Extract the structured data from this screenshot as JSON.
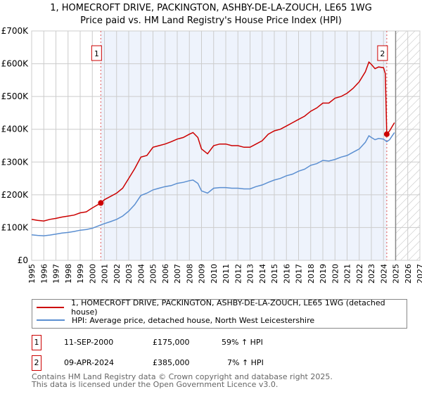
{
  "title_line1": "1, HOMECROFT DRIVE, PACKINGTON, ASHBY-DE-LA-ZOUCH, LE65 1WG",
  "title_line2": "Price paid vs. HM Land Registry's House Price Index (HPI)",
  "chart_data": {
    "type": "line",
    "xlim": [
      1995,
      2027
    ],
    "ylim": [
      0,
      700000
    ],
    "yticks": [
      {
        "v": 0,
        "label": "£0"
      },
      {
        "v": 100000,
        "label": "£100K"
      },
      {
        "v": 200000,
        "label": "£200K"
      },
      {
        "v": 300000,
        "label": "£300K"
      },
      {
        "v": 400000,
        "label": "£400K"
      },
      {
        "v": 500000,
        "label": "£500K"
      },
      {
        "v": 600000,
        "label": "£600K"
      },
      {
        "v": 700000,
        "label": "£700K"
      }
    ],
    "xticks": [
      "1995",
      "1996",
      "1997",
      "1998",
      "1999",
      "2000",
      "2001",
      "2002",
      "2003",
      "2004",
      "2005",
      "2006",
      "2007",
      "2008",
      "2009",
      "2010",
      "2011",
      "2012",
      "2013",
      "2014",
      "2015",
      "2016",
      "2017",
      "2018",
      "2019",
      "2020",
      "2021",
      "2022",
      "2023",
      "2024",
      "2025",
      "2026",
      "2027"
    ],
    "highlight_range": [
      2000.7,
      2024.27
    ],
    "forecast_start": 2025,
    "series": [
      {
        "name": "1, HOMECROFT DRIVE, PACKINGTON, ASHBY-DE-LA-ZOUCH, LE65 1WG (detached house)",
        "color": "#cc0000",
        "x": [
          1995,
          1995.5,
          1996,
          1996.5,
          1997,
          1997.5,
          1998,
          1998.5,
          1999,
          1999.5,
          2000,
          2000.7,
          2001,
          2001.5,
          2002,
          2002.5,
          2003,
          2003.5,
          2004,
          2004.5,
          2005,
          2005.5,
          2006,
          2006.5,
          2007,
          2007.5,
          2008,
          2008.3,
          2008.7,
          2009,
          2009.5,
          2010,
          2010.5,
          2011,
          2011.5,
          2012,
          2012.5,
          2013,
          2013.5,
          2014,
          2014.5,
          2015,
          2015.5,
          2016,
          2016.5,
          2017,
          2017.5,
          2018,
          2018.5,
          2019,
          2019.5,
          2020,
          2020.5,
          2021,
          2021.5,
          2022,
          2022.5,
          2022.8,
          2023,
          2023.3,
          2023.6,
          2024,
          2024.15,
          2024.27,
          2024.5,
          2024.9
        ],
        "y": [
          125000,
          122000,
          120000,
          125000,
          128000,
          132000,
          135000,
          138000,
          145000,
          148000,
          160000,
          175000,
          185000,
          195000,
          205000,
          220000,
          250000,
          280000,
          315000,
          320000,
          345000,
          350000,
          355000,
          362000,
          370000,
          375000,
          385000,
          390000,
          375000,
          340000,
          325000,
          350000,
          355000,
          355000,
          350000,
          350000,
          345000,
          345000,
          355000,
          365000,
          385000,
          395000,
          400000,
          410000,
          420000,
          430000,
          440000,
          455000,
          465000,
          480000,
          480000,
          495000,
          500000,
          510000,
          525000,
          545000,
          575000,
          605000,
          598000,
          585000,
          590000,
          588000,
          570000,
          385000,
          395000,
          420000
        ]
      },
      {
        "name": "HPI: Average price, detached house, North West Leicestershire",
        "color": "#5b8fd1",
        "x": [
          1995,
          1995.5,
          1996,
          1996.5,
          1997,
          1997.5,
          1998,
          1998.5,
          1999,
          1999.5,
          2000,
          2000.7,
          2001,
          2001.5,
          2002,
          2002.5,
          2003,
          2003.5,
          2004,
          2004.5,
          2005,
          2005.5,
          2006,
          2006.5,
          2007,
          2007.5,
          2008,
          2008.3,
          2008.7,
          2009,
          2009.5,
          2010,
          2010.5,
          2011,
          2011.5,
          2012,
          2012.5,
          2013,
          2013.5,
          2014,
          2014.5,
          2015,
          2015.5,
          2016,
          2016.5,
          2017,
          2017.5,
          2018,
          2018.5,
          2019,
          2019.5,
          2020,
          2020.5,
          2021,
          2021.5,
          2022,
          2022.5,
          2022.8,
          2023,
          2023.3,
          2023.6,
          2024,
          2024.27,
          2024.5,
          2024.9
        ],
        "y": [
          78000,
          76000,
          75000,
          77000,
          80000,
          83000,
          85000,
          88000,
          92000,
          94000,
          98000,
          108000,
          112000,
          118000,
          125000,
          135000,
          150000,
          170000,
          198000,
          205000,
          215000,
          220000,
          225000,
          228000,
          235000,
          238000,
          243000,
          245000,
          235000,
          212000,
          205000,
          220000,
          222000,
          222000,
          220000,
          220000,
          218000,
          218000,
          225000,
          230000,
          238000,
          245000,
          250000,
          258000,
          263000,
          272000,
          278000,
          290000,
          295000,
          305000,
          303000,
          308000,
          315000,
          320000,
          330000,
          340000,
          360000,
          380000,
          375000,
          368000,
          372000,
          370000,
          362000,
          368000,
          390000
        ]
      }
    ],
    "markers": [
      {
        "id": "1",
        "x": 2000.7,
        "y": 175000
      },
      {
        "id": "2",
        "x": 2024.27,
        "y": 385000
      }
    ]
  },
  "legend": {
    "red_label": "1, HOMECROFT DRIVE, PACKINGTON, ASHBY-DE-LA-ZOUCH, LE65 1WG (detached house)",
    "blue_label": "HPI: Average price, detached house, North West Leicestershire"
  },
  "transactions": [
    {
      "id": "1",
      "date": "11-SEP-2000",
      "price": "£175,000",
      "hpi": "59% ↑ HPI"
    },
    {
      "id": "2",
      "date": "09-APR-2024",
      "price": "£385,000",
      "hpi": "7% ↑ HPI"
    }
  ],
  "footer": {
    "line1": "Contains HM Land Registry data © Crown copyright and database right 2025.",
    "line2": "This data is licensed under the Open Government Licence v3.0."
  }
}
